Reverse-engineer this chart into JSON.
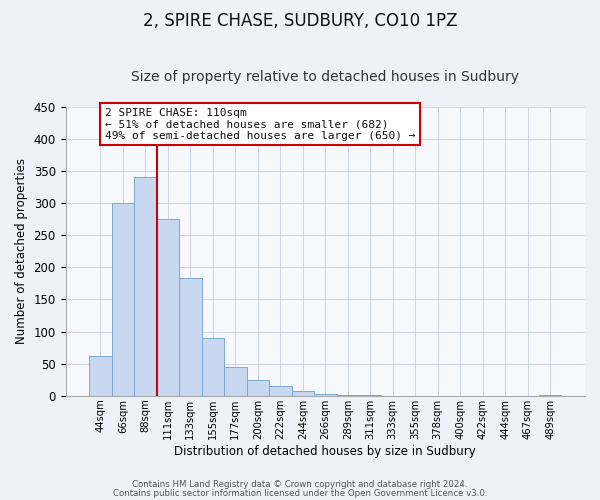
{
  "title": "2, SPIRE CHASE, SUDBURY, CO10 1PZ",
  "subtitle": "Size of property relative to detached houses in Sudbury",
  "xlabel": "Distribution of detached houses by size in Sudbury",
  "ylabel": "Number of detached properties",
  "bar_labels": [
    "44sqm",
    "66sqm",
    "88sqm",
    "111sqm",
    "133sqm",
    "155sqm",
    "177sqm",
    "200sqm",
    "222sqm",
    "244sqm",
    "266sqm",
    "289sqm",
    "311sqm",
    "333sqm",
    "355sqm",
    "378sqm",
    "400sqm",
    "422sqm",
    "444sqm",
    "467sqm",
    "489sqm"
  ],
  "bar_values": [
    62,
    300,
    340,
    275,
    184,
    90,
    45,
    24,
    16,
    7,
    3,
    1,
    1,
    0,
    0,
    0,
    0,
    0,
    0,
    0,
    2
  ],
  "bar_color": "#c8d8f0",
  "bar_edge_color": "#7aaad0",
  "vline_x": 2.5,
  "vline_color": "#cc0000",
  "ylim": [
    0,
    450
  ],
  "annotation_line1": "2 SPIRE CHASE: 110sqm",
  "annotation_line2": "← 51% of detached houses are smaller (682)",
  "annotation_line3": "49% of semi-detached houses are larger (650) →",
  "footer_line1": "Contains HM Land Registry data © Crown copyright and database right 2024.",
  "footer_line2": "Contains public sector information licensed under the Open Government Licence v3.0.",
  "title_fontsize": 12,
  "subtitle_fontsize": 10,
  "background_color": "#eef1f8",
  "plot_background_color": "#f8f9ff"
}
